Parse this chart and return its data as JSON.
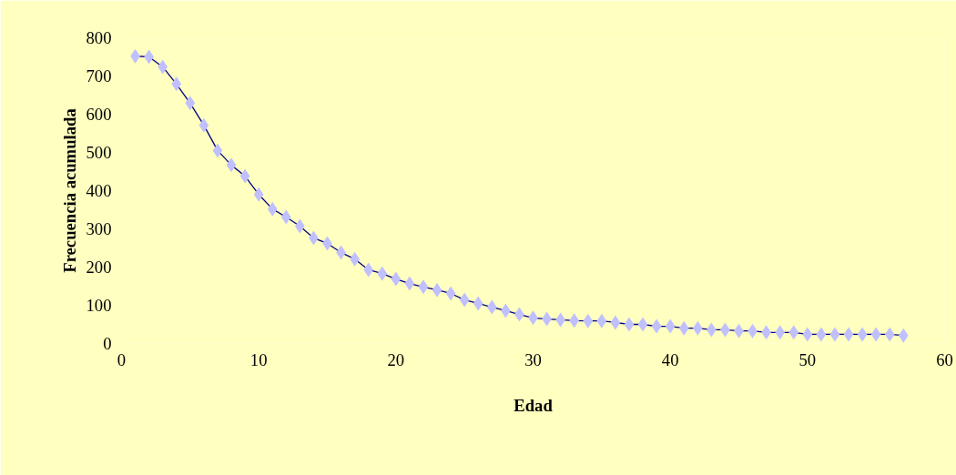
{
  "chart_data": {
    "type": "line",
    "xlabel": "Edad",
    "ylabel": "Frecuencia acumulada",
    "x": [
      1,
      2,
      3,
      4,
      5,
      6,
      7,
      8,
      9,
      10,
      11,
      12,
      13,
      14,
      15,
      16,
      17,
      18,
      19,
      20,
      21,
      22,
      23,
      24,
      25,
      26,
      27,
      28,
      29,
      30,
      31,
      32,
      33,
      34,
      35,
      36,
      37,
      38,
      39,
      40,
      41,
      42,
      43,
      44,
      45,
      46,
      47,
      48,
      49,
      50,
      51,
      52,
      53,
      54,
      55,
      56,
      57
    ],
    "series": [
      {
        "color": "#c0c0ff",
        "values": [
          752,
          750,
          724,
          679,
          629,
          571,
          505,
          467,
          438,
          390,
          352,
          331,
          307,
          276,
          262,
          238,
          221,
          193,
          183,
          169,
          157,
          148,
          140,
          131,
          114,
          105,
          95,
          86,
          76,
          67,
          64,
          62,
          60,
          59,
          59,
          55,
          50,
          50,
          45,
          45,
          40,
          40,
          36,
          36,
          33,
          33,
          29,
          29,
          29,
          24,
          24,
          24,
          24,
          24,
          24,
          24,
          21
        ]
      }
    ],
    "xlim": [
      0,
      60
    ],
    "xticks": [
      0,
      10,
      20,
      30,
      40,
      50,
      60
    ],
    "ylim": [
      0,
      800
    ],
    "yticks": [
      0,
      100,
      200,
      300,
      400,
      500,
      600,
      700,
      800
    ],
    "marker": "diamond",
    "line_style": "solid",
    "grid": false
  }
}
